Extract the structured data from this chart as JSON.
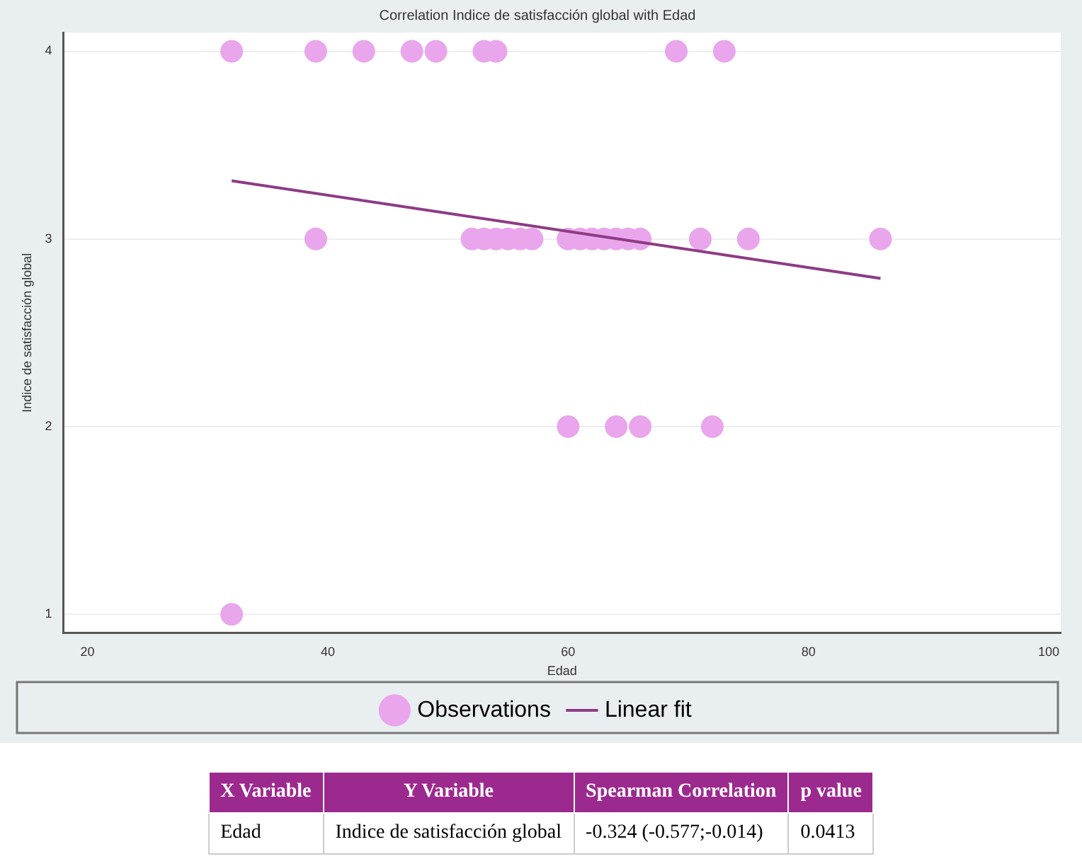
{
  "chart_data": {
    "type": "scatter",
    "title": "Correlation Indice de satisfacción global with Edad",
    "xlabel": "Edad",
    "ylabel": "Indice de satisfacción global",
    "xlim": [
      18,
      101
    ],
    "xticks": [
      20,
      40,
      60,
      80,
      100
    ],
    "ylim": [
      0.9,
      4.1
    ],
    "yticks": [
      1,
      2,
      3,
      4
    ],
    "grid": "y",
    "legend": "bottom",
    "series": [
      {
        "name": "Observations",
        "color": "#e9a6ec",
        "x": [
          32,
          39,
          43,
          47,
          49,
          53,
          54,
          69,
          73,
          39,
          52,
          53,
          54,
          55,
          56,
          57,
          60,
          61,
          62,
          63,
          64,
          65,
          66,
          71,
          75,
          86,
          60,
          64,
          66,
          72,
          32
        ],
        "values": [
          4,
          4,
          4,
          4,
          4,
          4,
          4,
          4,
          4,
          3,
          3,
          3,
          3,
          3,
          3,
          3,
          3,
          3,
          3,
          3,
          3,
          3,
          3,
          3,
          3,
          3,
          2,
          2,
          2,
          2,
          1
        ]
      },
      {
        "name": "Linear fit",
        "type": "line",
        "color": "#8e3b84",
        "x": [
          32,
          86
        ],
        "values": [
          3.31,
          2.79
        ]
      }
    ],
    "annotations": [
      "X Variable",
      "Y Variable",
      "Spearman Correlation",
      "p value",
      "Edad",
      "Indice de satisfacción global",
      "-0.324 (-0.577;-0.014)",
      "0.0413"
    ]
  }
}
